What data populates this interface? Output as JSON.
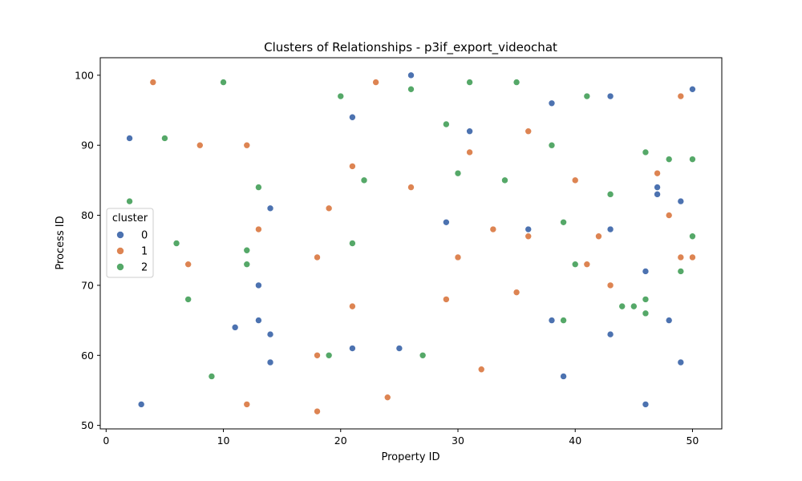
{
  "chart_data": {
    "type": "scatter",
    "title": "Clusters of Relationships - p3if_export_videochat",
    "xlabel": "Property ID",
    "ylabel": "Process ID",
    "xlim": [
      -0.5,
      52.5
    ],
    "ylim": [
      49.5,
      102.5
    ],
    "xticks": [
      0,
      10,
      20,
      30,
      40,
      50
    ],
    "yticks": [
      50,
      60,
      70,
      80,
      90,
      100
    ],
    "grid": false,
    "legend": {
      "title": "cluster",
      "placement": "center-left"
    },
    "series": [
      {
        "name": "0",
        "color": "#4c72b0",
        "points": [
          [
            26,
            100
          ],
          [
            50,
            98
          ],
          [
            43,
            97
          ],
          [
            38,
            96
          ],
          [
            21,
            94
          ],
          [
            31,
            92
          ],
          [
            2,
            91
          ],
          [
            47,
            84
          ],
          [
            47,
            83
          ],
          [
            49,
            82
          ],
          [
            14,
            81
          ],
          [
            29,
            79
          ],
          [
            36,
            78
          ],
          [
            43,
            78
          ],
          [
            46,
            72
          ],
          [
            13,
            70
          ],
          [
            13,
            65
          ],
          [
            38,
            65
          ],
          [
            48,
            65
          ],
          [
            11,
            64
          ],
          [
            14,
            63
          ],
          [
            43,
            63
          ],
          [
            21,
            61
          ],
          [
            25,
            61
          ],
          [
            14,
            59
          ],
          [
            49,
            59
          ],
          [
            39,
            57
          ],
          [
            3,
            53
          ],
          [
            46,
            53
          ]
        ]
      },
      {
        "name": "1",
        "color": "#dd8452",
        "points": [
          [
            4,
            99
          ],
          [
            23,
            99
          ],
          [
            49,
            97
          ],
          [
            36,
            92
          ],
          [
            8,
            90
          ],
          [
            12,
            90
          ],
          [
            31,
            89
          ],
          [
            21,
            87
          ],
          [
            47,
            86
          ],
          [
            40,
            85
          ],
          [
            26,
            84
          ],
          [
            19,
            81
          ],
          [
            48,
            80
          ],
          [
            13,
            78
          ],
          [
            33,
            78
          ],
          [
            36,
            77
          ],
          [
            42,
            77
          ],
          [
            18,
            74
          ],
          [
            30,
            74
          ],
          [
            49,
            74
          ],
          [
            50,
            74
          ],
          [
            7,
            73
          ],
          [
            41,
            73
          ],
          [
            43,
            70
          ],
          [
            35,
            69
          ],
          [
            29,
            68
          ],
          [
            21,
            67
          ],
          [
            18,
            60
          ],
          [
            32,
            58
          ],
          [
            24,
            54
          ],
          [
            12,
            53
          ],
          [
            18,
            52
          ]
        ]
      },
      {
        "name": "2",
        "color": "#55a868",
        "points": [
          [
            10,
            99
          ],
          [
            31,
            99
          ],
          [
            35,
            99
          ],
          [
            26,
            98
          ],
          [
            20,
            97
          ],
          [
            41,
            97
          ],
          [
            29,
            93
          ],
          [
            5,
            91
          ],
          [
            38,
            90
          ],
          [
            46,
            89
          ],
          [
            48,
            88
          ],
          [
            50,
            88
          ],
          [
            30,
            86
          ],
          [
            22,
            85
          ],
          [
            34,
            85
          ],
          [
            13,
            84
          ],
          [
            43,
            83
          ],
          [
            2,
            82
          ],
          [
            39,
            79
          ],
          [
            50,
            77
          ],
          [
            6,
            76
          ],
          [
            21,
            76
          ],
          [
            12,
            75
          ],
          [
            12,
            73
          ],
          [
            40,
            73
          ],
          [
            49,
            72
          ],
          [
            7,
            68
          ],
          [
            46,
            68
          ],
          [
            44,
            67
          ],
          [
            45,
            67
          ],
          [
            46,
            66
          ],
          [
            39,
            65
          ],
          [
            19,
            60
          ],
          [
            27,
            60
          ],
          [
            9,
            57
          ]
        ]
      }
    ]
  }
}
